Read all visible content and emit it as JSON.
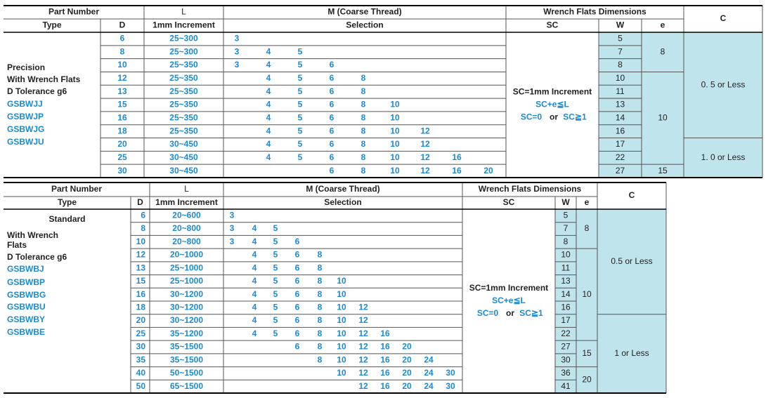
{
  "tables": [
    {
      "header": {
        "part_number": "Part Number",
        "type": "Type",
        "d": "D",
        "l": "L",
        "l_sub": "1mm Increment",
        "m": "M (Coarse Thread)",
        "m_sub": "Selection",
        "wrench": "Wrench Flats Dimensions",
        "sc": "SC",
        "w": "W",
        "e": "e",
        "c": "C"
      },
      "type_lines": [
        "Precision",
        "With Wrench Flats",
        "D Tolerance g6"
      ],
      "type_codes": [
        "GSBWJJ",
        "GSBWJP",
        "GSBWJG",
        "GSBWJU"
      ],
      "sc_text": {
        "line1": "SC=1mm Increment",
        "line2": "SC+e≦L",
        "line3": [
          "SC=0",
          "or",
          "SC≧1"
        ]
      },
      "rows": [
        {
          "d": 6,
          "l": "25~300",
          "m": [
            3
          ],
          "w": 5
        },
        {
          "d": 8,
          "l": "25~300",
          "m": [
            3,
            4,
            5
          ],
          "w": 7
        },
        {
          "d": 10,
          "l": "25~350",
          "m": [
            3,
            4,
            5,
            6
          ],
          "w": 8
        },
        {
          "d": 12,
          "l": "25~350",
          "m": [
            null,
            4,
            5,
            6,
            8
          ],
          "w": 10
        },
        {
          "d": 13,
          "l": "25~350",
          "m": [
            null,
            4,
            5,
            6,
            8
          ],
          "w": 11
        },
        {
          "d": 15,
          "l": "25~350",
          "m": [
            null,
            4,
            5,
            6,
            8,
            10
          ],
          "w": 13
        },
        {
          "d": 16,
          "l": "25~350",
          "m": [
            null,
            4,
            5,
            6,
            8,
            10
          ],
          "w": 14
        },
        {
          "d": 18,
          "l": "25~350",
          "m": [
            null,
            4,
            5,
            6,
            8,
            10,
            12
          ],
          "w": 16
        },
        {
          "d": 20,
          "l": "30~450",
          "m": [
            null,
            4,
            5,
            6,
            8,
            10,
            12
          ],
          "w": 17
        },
        {
          "d": 25,
          "l": "30~450",
          "m": [
            null,
            4,
            5,
            6,
            8,
            10,
            12,
            16
          ],
          "w": 22
        },
        {
          "d": 30,
          "l": "30~450",
          "m": [
            null,
            null,
            null,
            6,
            8,
            10,
            12,
            16,
            20
          ],
          "w": 27
        }
      ],
      "e": [
        8,
        null,
        null,
        10,
        null,
        null,
        null,
        null,
        null,
        null,
        15
      ],
      "c": [
        "0. 5 or Less",
        null,
        null,
        null,
        null,
        null,
        null,
        null,
        "1. 0 or Less",
        null,
        null
      ]
    },
    {
      "header": {
        "part_number": "Part Number",
        "type": "Type",
        "d": "D",
        "l": "L",
        "l_sub": "1mm Increment",
        "m": "M (Coarse Thread)",
        "m_sub": "Selection",
        "wrench": "Wrench Flats Dimensions",
        "sc": "SC",
        "w": "W",
        "e": "e",
        "c": "C"
      },
      "type_lines": [
        "Standard",
        "With Wrench",
        "Flats",
        "D Tolerance g6"
      ],
      "type_codes": [
        "GSBWBJ",
        "GSBWBP",
        "GSBWBG",
        "GSBWBU",
        "GSBWBY",
        "GSBWBE"
      ],
      "sc_text": {
        "line1": "SC=1mm Increment",
        "line2": "SC+e≦L",
        "line3": [
          "SC=0",
          "or",
          "SC≧1"
        ]
      },
      "rows": [
        {
          "d": 6,
          "l": "20~600",
          "m": [
            3
          ],
          "w": 5
        },
        {
          "d": 8,
          "l": "20~800",
          "m": [
            3,
            4,
            5
          ],
          "w": 7
        },
        {
          "d": 10,
          "l": "20~800",
          "m": [
            3,
            4,
            5,
            6
          ],
          "w": 8
        },
        {
          "d": 12,
          "l": "20~1000",
          "m": [
            null,
            4,
            5,
            6,
            8
          ],
          "w": 10
        },
        {
          "d": 13,
          "l": "25~1000",
          "m": [
            null,
            4,
            5,
            6,
            8
          ],
          "w": 11
        },
        {
          "d": 15,
          "l": "25~1000",
          "m": [
            null,
            4,
            5,
            6,
            8,
            10
          ],
          "w": 13
        },
        {
          "d": 16,
          "l": "30~1200",
          "m": [
            null,
            4,
            5,
            6,
            8,
            10
          ],
          "w": 14
        },
        {
          "d": 18,
          "l": "30~1200",
          "m": [
            null,
            4,
            5,
            6,
            8,
            10,
            12
          ],
          "w": 16
        },
        {
          "d": 20,
          "l": "30~1200",
          "m": [
            null,
            4,
            5,
            6,
            8,
            10,
            12
          ],
          "w": 17
        },
        {
          "d": 25,
          "l": "35~1200",
          "m": [
            null,
            4,
            5,
            6,
            8,
            10,
            12,
            16
          ],
          "w": 22
        },
        {
          "d": 30,
          "l": "35~1500",
          "m": [
            null,
            null,
            null,
            6,
            8,
            10,
            12,
            16,
            20
          ],
          "w": 27
        },
        {
          "d": 35,
          "l": "35~1500",
          "m": [
            null,
            null,
            null,
            null,
            8,
            10,
            12,
            16,
            20,
            24
          ],
          "w": 30
        },
        {
          "d": 40,
          "l": "50~1500",
          "m": [
            null,
            null,
            null,
            null,
            null,
            10,
            12,
            16,
            20,
            24,
            30
          ],
          "w": 36
        },
        {
          "d": 50,
          "l": "65~1500",
          "m": [
            null,
            null,
            null,
            null,
            null,
            null,
            12,
            16,
            20,
            24,
            30
          ],
          "w": 41
        }
      ],
      "e": [
        8,
        null,
        null,
        10,
        null,
        null,
        null,
        null,
        null,
        null,
        15,
        null,
        20,
        null
      ],
      "c": [
        "0.5 or Less",
        null,
        null,
        null,
        null,
        null,
        null,
        null,
        "1 or Less",
        null,
        null,
        null,
        null,
        null
      ]
    }
  ]
}
